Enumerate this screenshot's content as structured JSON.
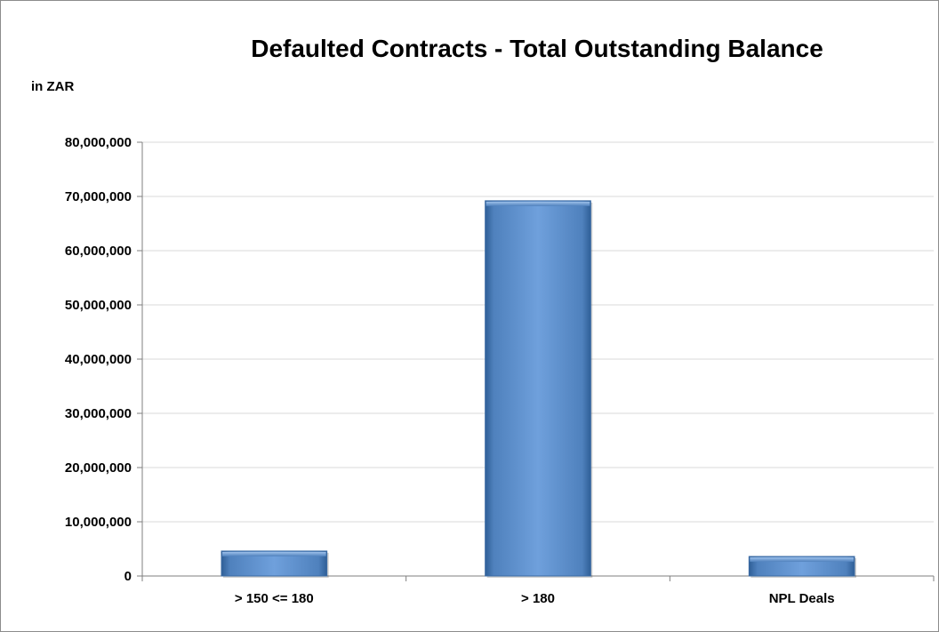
{
  "chart_data": {
    "type": "bar",
    "title": "Defaulted Contracts - Total Outstanding Balance",
    "ylabel": "in ZAR",
    "xlabel": "",
    "categories": [
      "> 150 <= 180",
      "> 180",
      "NPL Deals"
    ],
    "values": [
      4600000,
      69200000,
      3600000
    ],
    "ylim": [
      0,
      80000000
    ],
    "yticks": [
      0,
      10000000,
      20000000,
      30000000,
      40000000,
      50000000,
      60000000,
      70000000,
      80000000
    ],
    "ytick_labels": [
      "0",
      "10,000,000",
      "20,000,000",
      "30,000,000",
      "40,000,000",
      "50,000,000",
      "60,000,000",
      "70,000,000",
      "80,000,000"
    ],
    "grid": true,
    "legend": "none",
    "colors": {
      "bar": "#4f81bd",
      "bar_light": "#6fa0dc",
      "bar_dark": "#2f5f97",
      "grid": "#d9d9d9",
      "axis": "#7f7f7f",
      "frame": "#8c8c8c"
    }
  }
}
